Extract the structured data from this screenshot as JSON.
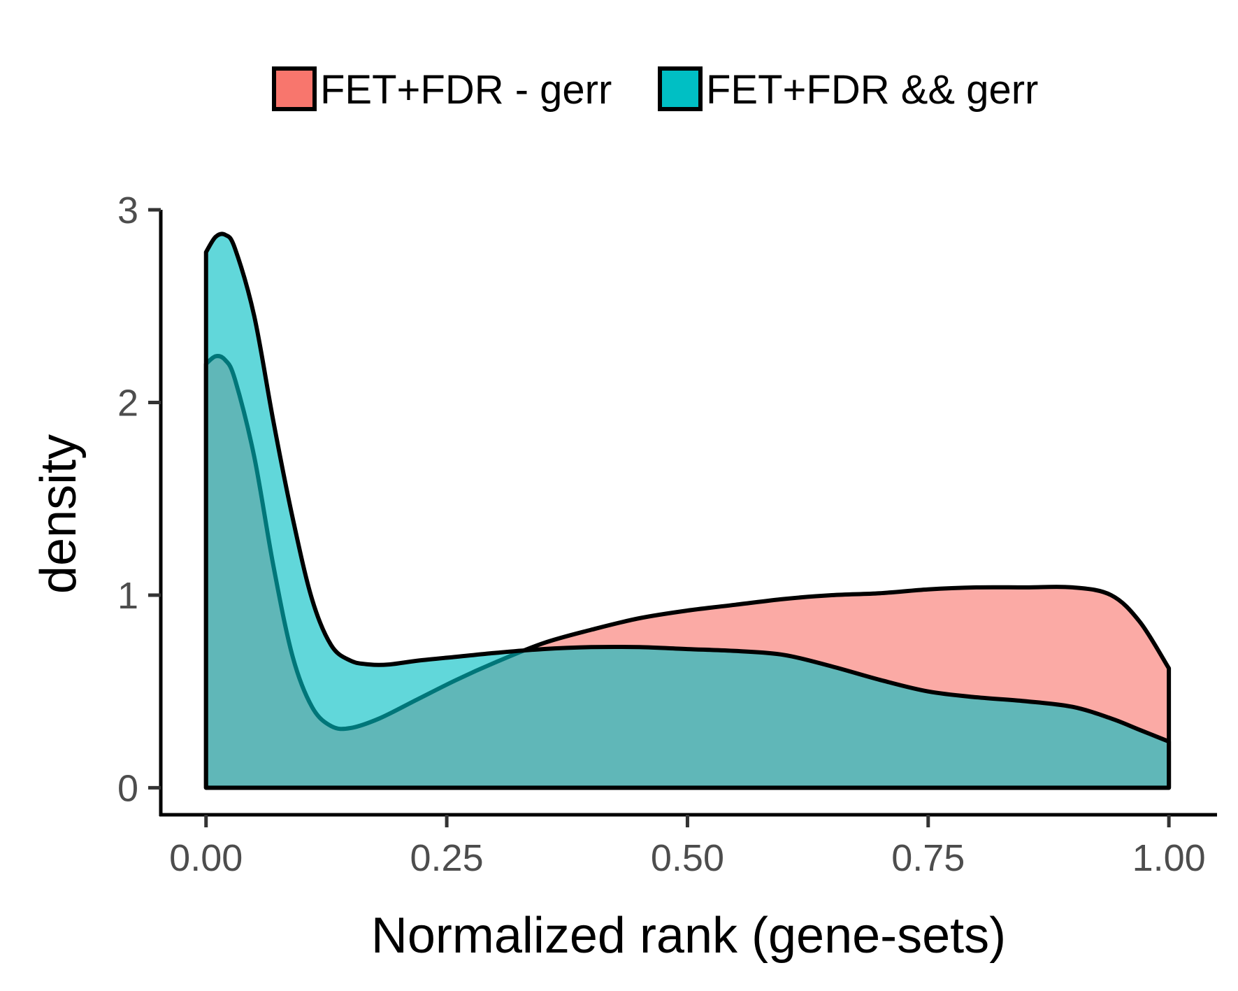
{
  "chart_data": {
    "type": "area",
    "xlabel": "Normalized rank (gene-sets)",
    "ylabel": "density",
    "xlim": [
      -0.047,
      1.05
    ],
    "ylim": [
      -0.14,
      3.0
    ],
    "x_ticks": [
      0,
      0.25,
      0.5,
      0.75,
      1.0
    ],
    "x_tick_labels": [
      "0.00",
      "0.25",
      "0.50",
      "0.75",
      "1.00"
    ],
    "y_ticks": [
      0,
      1,
      2,
      3
    ],
    "y_tick_labels": [
      "0",
      "1",
      "2",
      "3"
    ],
    "legend_position": "top",
    "grid": false,
    "series": [
      {
        "name": "FET+FDR - gerr",
        "color": "#F8766D",
        "x": [
          0.0,
          0.01,
          0.02,
          0.03,
          0.05,
          0.07,
          0.09,
          0.11,
          0.13,
          0.15,
          0.18,
          0.22,
          0.26,
          0.3,
          0.35,
          0.4,
          0.45,
          0.5,
          0.55,
          0.6,
          0.65,
          0.7,
          0.75,
          0.8,
          0.85,
          0.9,
          0.94,
          0.97,
          1.0
        ],
        "y": [
          2.2,
          2.24,
          2.22,
          2.12,
          1.72,
          1.15,
          0.68,
          0.42,
          0.32,
          0.31,
          0.36,
          0.46,
          0.56,
          0.65,
          0.75,
          0.82,
          0.88,
          0.92,
          0.95,
          0.98,
          1.0,
          1.01,
          1.03,
          1.04,
          1.04,
          1.04,
          1.0,
          0.86,
          0.62
        ]
      },
      {
        "name": "FET+FDR && gerr",
        "color": "#00BFC4",
        "x": [
          0.0,
          0.01,
          0.02,
          0.03,
          0.05,
          0.07,
          0.09,
          0.11,
          0.13,
          0.15,
          0.17,
          0.19,
          0.22,
          0.26,
          0.3,
          0.35,
          0.4,
          0.45,
          0.5,
          0.55,
          0.6,
          0.65,
          0.7,
          0.75,
          0.8,
          0.85,
          0.9,
          0.94,
          0.97,
          1.0
        ],
        "y": [
          2.78,
          2.86,
          2.87,
          2.8,
          2.45,
          1.9,
          1.4,
          0.98,
          0.74,
          0.66,
          0.64,
          0.64,
          0.66,
          0.68,
          0.7,
          0.72,
          0.73,
          0.73,
          0.72,
          0.71,
          0.69,
          0.63,
          0.56,
          0.5,
          0.47,
          0.45,
          0.42,
          0.36,
          0.3,
          0.24
        ]
      }
    ]
  }
}
